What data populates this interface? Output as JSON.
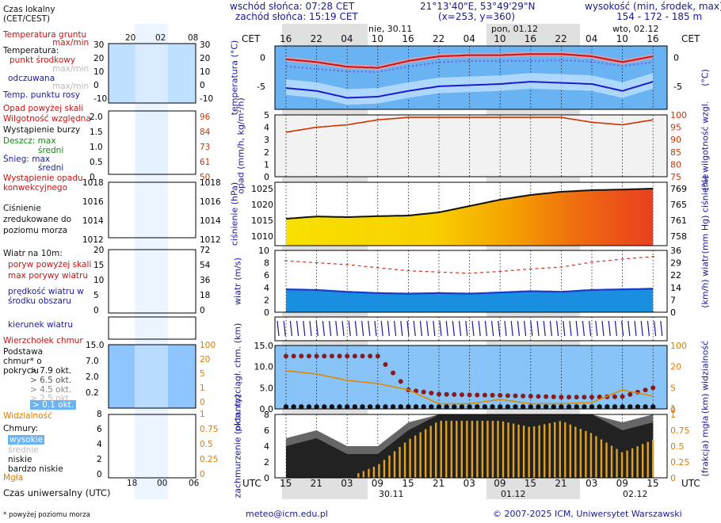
{
  "header": {
    "sunrise": "wschód słońca: 07:28 CET",
    "sunset": "zachód słońca: 15:19 CET",
    "coords": "21°13'40\"E, 53°49'29\"N",
    "grid": "(x=253,  y=360)",
    "elev_label": "wysokość (min, środek, max)",
    "elev_values": "154 - 172 - 185 m"
  },
  "top_axis": {
    "cet_left": "CET",
    "cet_right": "CET",
    "hours": [
      "16",
      "22",
      "04",
      "10",
      "16",
      "22",
      "04",
      "10",
      "16",
      "22",
      "04",
      "10",
      "16"
    ],
    "days": [
      "nie, 30.11",
      "pon, 01.12",
      "wto, 02.12"
    ]
  },
  "bottom_axis": {
    "utc_left": "UTC",
    "utc_right": "UTC",
    "hours": [
      "15",
      "21",
      "03",
      "09",
      "15",
      "21",
      "03",
      "09",
      "15",
      "21",
      "03",
      "09",
      "15"
    ],
    "days": [
      "30.11",
      "01.12",
      "02.12"
    ]
  },
  "panel_labels": {
    "temperature": {
      "left": "temperatura (°C)",
      "right": "(°C)"
    },
    "precip": {
      "left": "opad (mm/h, kg/m²/h)",
      "right": "(%) wilgotność wzgl."
    },
    "pressure": {
      "left": "ciśnienie (hPa)",
      "right": "(mm Hg) ciśnienie"
    },
    "wind": {
      "left": "wiatr (m/s)",
      "right": "(km/h) wiatr"
    },
    "clouds_base": {
      "left": "pion. rozciągł. chm. (km)",
      "right": "(km) widzialność"
    },
    "clouds_cover": {
      "left": "zachmurzenie (oktanty)",
      "right": "(frakcja) mgła"
    }
  },
  "legend": {
    "local_time": "Czas lokalny (CET/CEST)",
    "local_hours": [
      "20",
      "02",
      "08"
    ],
    "soil_temp": "Temperatura gruntu",
    "soil_maxmin": "max/min",
    "temp_title": "Temperatura:",
    "temp_mid": "punkt środkowy",
    "temp_maxmin": "max/min",
    "temp_feel": "odczuwana",
    "temp_feel_maxmin": "max/min",
    "dew": "Temp. punktu rosy",
    "precip_above": "Opad powyżej skali",
    "rh": "Wilgotność względna",
    "storm": "Wystąpienie burzy",
    "rain_max": "Deszcz: max",
    "rain_mean": "średni",
    "snow_max": "Śnieg:   max",
    "snow_mean": "średni",
    "precip_occ": "Wystąpienie opadu konwekcyjnego",
    "pressure": "Ciśnienie zredukowane do poziomu morza",
    "wind_title": "Wiatr na 10m:",
    "gust_above": "poryw powyżej skali",
    "gust_max": "max porywy wiatru",
    "wind_mean": "prędkość wiatru w środku obszaru",
    "wind_dir": "kierunek wiatru",
    "cloud_top": "Wierzchołek chmur",
    "cloud_base": "Podstawa chmur* o pokryciu",
    "okt": [
      "> 7.9 okt.",
      "> 6.5 okt.",
      "> 4.5 okt.",
      "> 2.5 okt.",
      "> 0.1 okt."
    ],
    "visibility": "Widzialność",
    "clouds_title": "Chmury:",
    "cl_high": "wysokie",
    "cl_mid": "średnie",
    "cl_low": "niskie",
    "cl_vlow": "bardzo niskie",
    "fog": "Mgła",
    "utc": "Czas uniwersalny (UTC)",
    "utc_hours": [
      "18",
      "00",
      "06"
    ],
    "footnote": "* powyżej poziomu morza",
    "t_ticks_l": [
      "30",
      "20",
      "10",
      "0",
      "-10"
    ],
    "t_ticks_r": [
      "30",
      "20",
      "10",
      "0",
      "-10"
    ],
    "p_ticks_l": [
      "2.0",
      "1.5",
      "1.0",
      "0.5",
      "0"
    ],
    "p_ticks_r": [
      "96",
      "84",
      "73",
      "61",
      "50"
    ],
    "pr_ticks_l": [
      "1018",
      "1016",
      "1014",
      "1012"
    ],
    "pr_ticks_r": [
      "1018",
      "1016",
      "1014",
      "1012"
    ],
    "w_ticks_l": [
      "20",
      "15",
      "10",
      "5",
      "0"
    ],
    "w_ticks_r": [
      "72",
      "54",
      "36",
      "18",
      "0"
    ],
    "cb_ticks_l": [
      "15.0",
      "7.0",
      "2.0",
      "0.2"
    ],
    "cb_ticks_r": [
      "100",
      "20",
      "5",
      "1",
      "0"
    ],
    "cc_ticks_l": [
      "8",
      "6",
      "4",
      "2",
      "0"
    ],
    "cc_ticks_r": [
      "1",
      "0.75",
      "0.5",
      "0.25",
      "0"
    ]
  },
  "footer": {
    "email": "meteo@icm.edu.pl",
    "copyright": "© 2007-2025 ICM, Uniwersytet Warszawski"
  },
  "chart_data": [
    {
      "type": "line",
      "title": "temperatura",
      "ylabel": "(°C)",
      "ylim": [
        -9,
        2
      ],
      "x_hours_cet": [
        16,
        22,
        4,
        10,
        16,
        22,
        4,
        10,
        16,
        22,
        4,
        10,
        16
      ],
      "series": [
        {
          "name": "temperatura punkt środkowy",
          "color": "#cc1111",
          "values": [
            -0.3,
            -0.8,
            -1.6,
            -1.8,
            -0.6,
            0.2,
            0.4,
            0.4,
            0.6,
            0.6,
            0.2,
            -0.8,
            0.2
          ]
        },
        {
          "name": "temperatura odczuwana",
          "color": "#1a1acc",
          "values": [
            -5.3,
            -5.8,
            -7.0,
            -6.8,
            -5.8,
            -5.0,
            -4.8,
            -4.6,
            -4.2,
            -4.4,
            -4.6,
            -5.8,
            -4.2
          ]
        },
        {
          "name": "temp. punktu rosy",
          "color": "#6a6ae0",
          "values": [
            -1.5,
            -2.0,
            -2.4,
            -2.5,
            -1.6,
            -0.8,
            -0.6,
            -0.6,
            -0.6,
            -0.5,
            -0.7,
            -1.5,
            -0.8
          ]
        }
      ]
    },
    {
      "type": "line",
      "title": "opad / wilgotność względna",
      "ylabel": "mm/h",
      "y2label": "%",
      "ylim": [
        0,
        5
      ],
      "y2lim": [
        75,
        100
      ],
      "x_hours_cet": [
        16,
        22,
        4,
        10,
        16,
        22,
        4,
        10,
        16,
        22,
        4,
        10,
        16
      ],
      "series": [
        {
          "name": "wilgotność względna",
          "color": "#cc3300",
          "values": [
            93,
            95,
            96,
            98,
            99,
            99,
            99,
            99,
            99,
            99,
            97,
            96,
            98
          ]
        }
      ]
    },
    {
      "type": "area",
      "title": "ciśnienie",
      "ylabel": "hPa",
      "y2label": "mm Hg",
      "ylim": [
        1007,
        1027
      ],
      "x_hours_cet": [
        16,
        22,
        4,
        10,
        16,
        22,
        4,
        10,
        16,
        22,
        4,
        10,
        16
      ],
      "series": [
        {
          "name": "ciśnienie zredukowane",
          "color": "#111111",
          "values": [
            1015.5,
            1016.2,
            1016.0,
            1016.3,
            1016.5,
            1017.5,
            1019.5,
            1021.5,
            1023,
            1024,
            1024.5,
            1024.7,
            1025
          ]
        }
      ]
    },
    {
      "type": "line",
      "title": "wiatr",
      "ylabel": "m/s",
      "y2label": "km/h",
      "ylim": [
        0,
        10
      ],
      "x_hours_cet": [
        16,
        22,
        4,
        10,
        16,
        22,
        4,
        10,
        16,
        22,
        4,
        10,
        16
      ],
      "series": [
        {
          "name": "prędkość wiatru",
          "color": "#1a3acc",
          "values": [
            3.7,
            3.6,
            3.3,
            3.1,
            3.0,
            3.1,
            3.0,
            3.2,
            3.4,
            3.3,
            3.6,
            3.7,
            3.8
          ]
        },
        {
          "name": "max porywy",
          "color": "#cc3322",
          "values": [
            8.3,
            8.0,
            7.7,
            7.2,
            6.7,
            6.5,
            6.3,
            6.6,
            7.0,
            7.3,
            8.1,
            8.6,
            9.0
          ]
        }
      ]
    },
    {
      "type": "line",
      "title": "pion. rozciągł. chm. / widzialność",
      "ylabel": "km",
      "y2label": "km",
      "ylim": [
        0,
        15
      ],
      "x_hours_cet": [
        16,
        22,
        4,
        10,
        16,
        22,
        4,
        10,
        16,
        22,
        4,
        10,
        16
      ],
      "series": [
        {
          "name": "wierzchołek chmur",
          "color": "#8b1a1a",
          "values": [
            12.5,
            12.5,
            12.5,
            12.5,
            4.5,
            3.5,
            3.3,
            3.2,
            3.0,
            2.8,
            2.8,
            2.9,
            5.0
          ]
        },
        {
          "name": "widzialność",
          "color": "#e08a00",
          "values": [
            0.6,
            0.55,
            0.45,
            0.4,
            0.3,
            0.08,
            0.08,
            0.15,
            0.08,
            0.08,
            0.1,
            0.3,
            0.2
          ]
        }
      ]
    },
    {
      "type": "area",
      "title": "zachmurzenie / mgła",
      "ylabel": "oktanty",
      "y2label": "frakcja",
      "ylim": [
        0,
        8
      ],
      "y2lim": [
        0,
        1
      ],
      "x_hours_cet": [
        16,
        22,
        4,
        10,
        16,
        22,
        4,
        10,
        16,
        22,
        4,
        10,
        16
      ],
      "series": [
        {
          "name": "chmury niskie",
          "color": "#666666",
          "values": [
            5,
            6,
            4,
            4,
            7,
            8,
            8,
            8,
            8,
            8,
            8,
            7,
            8
          ]
        },
        {
          "name": "chmury bardzo niskie",
          "color": "#222222",
          "values": [
            4,
            5,
            3,
            3,
            6,
            8,
            8,
            8,
            8,
            8,
            8,
            6,
            7
          ]
        },
        {
          "name": "mgła",
          "color": "#e0a020",
          "values": [
            0,
            0,
            0,
            0.2,
            0.6,
            0.9,
            0.9,
            0.9,
            0.8,
            0.9,
            0.7,
            0.4,
            0.6
          ]
        }
      ]
    }
  ]
}
